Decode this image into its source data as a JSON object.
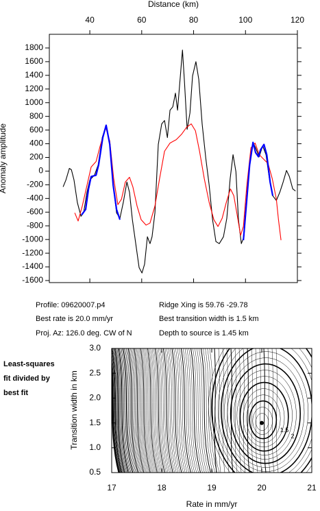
{
  "chart_data": [
    {
      "type": "line",
      "x_label": "Distance (km)",
      "y_label": "Anomaly amplitude",
      "xlim": [
        24.4,
        120
      ],
      "xticks": [
        40,
        60,
        80,
        100,
        120
      ],
      "ylim": [
        -1630,
        2000
      ],
      "yticks": [
        -1600,
        -1400,
        -1200,
        -1000,
        -800,
        -600,
        -400,
        -200,
        0,
        200,
        400,
        600,
        800,
        1000,
        1200,
        1400,
        1600,
        1800
      ],
      "series": [
        {
          "color": "#000000",
          "x": [
            29.7,
            30.8,
            32.1,
            32.9,
            33.9,
            35.2,
            36.6,
            37.6,
            38.9,
            40,
            41.8,
            43.2,
            44.8,
            46.3,
            47.7,
            49,
            50.3,
            51.6,
            52.9,
            54.3,
            55.3,
            56.4,
            57.7,
            59,
            60.1,
            61.1,
            62.2,
            63.2,
            64,
            65.1,
            66.4,
            67.7,
            68.8,
            69.9,
            70.9,
            72,
            73,
            73.8,
            74.9,
            75.7,
            76.5,
            77.5,
            78.6,
            79.6,
            80.9,
            82,
            83.3,
            84.7,
            86,
            87.3,
            88.6,
            89.9,
            91.5,
            92.8,
            94.1,
            95.2,
            96.3,
            97.3,
            98.4,
            99.4,
            100.5,
            101.6,
            102.9,
            103.9,
            105.3,
            106.6,
            107.9,
            109.2,
            110.5,
            111.9,
            113.2,
            114.5,
            115.8,
            116.9,
            118.2,
            119.3
          ],
          "values": [
            -230,
            -130,
            40,
            20,
            -130,
            -460,
            -660,
            -610,
            -310,
            -130,
            -60,
            90,
            490,
            670,
            390,
            -210,
            -610,
            -690,
            -460,
            -160,
            -310,
            -710,
            -1060,
            -1410,
            -1490,
            -1360,
            -960,
            -1060,
            -960,
            -610,
            390,
            690,
            740,
            490,
            890,
            940,
            1140,
            890,
            1390,
            1770,
            1290,
            610,
            850,
            1390,
            1600,
            1340,
            690,
            190,
            -210,
            -710,
            -1030,
            -1060,
            -960,
            -690,
            -110,
            240,
            -10,
            -710,
            -1060,
            -960,
            -410,
            90,
            420,
            340,
            210,
            370,
            240,
            -110,
            -360,
            -430,
            -310,
            -160,
            10,
            -80,
            -260,
            -290
          ]
        },
        {
          "color": "#ff0000",
          "x": [
            34.2,
            35.5,
            37.1,
            38.9,
            40.5,
            42.4,
            44,
            46.1,
            47.7,
            49.2,
            50.8,
            52.2,
            53.7,
            55.3,
            56.6,
            58.2,
            59.8,
            61.7,
            63.2,
            65.1,
            66.9,
            68.8,
            70.9,
            73.3,
            75.4,
            77.3,
            79.1,
            80.7,
            82.3,
            84.1,
            86,
            87.8,
            89.4,
            91,
            92.6,
            94.2,
            95.5,
            97.1,
            98.1,
            99.2,
            100.5,
            102.1,
            103.7,
            105.3,
            107.1,
            108.7,
            110.3,
            111.9,
            112.7,
            113.7
          ],
          "values": [
            -610,
            -730,
            -510,
            -210,
            60,
            140,
            370,
            640,
            440,
            -110,
            -490,
            -410,
            -160,
            -90,
            -230,
            -510,
            -710,
            -790,
            -760,
            -510,
            -110,
            290,
            410,
            460,
            540,
            640,
            690,
            590,
            290,
            -110,
            -460,
            -710,
            -810,
            -690,
            -460,
            -260,
            -360,
            -710,
            -940,
            -810,
            -210,
            340,
            410,
            240,
            170,
            110,
            -110,
            -410,
            -710,
            -1010
          ]
        },
        {
          "color": "#0000ff",
          "x": [
            36.8,
            38.4,
            39.5,
            40.5,
            42.4,
            43.4,
            45,
            46.3,
            47.7,
            49,
            50.3,
            51.6,
            75,
            99.2,
            100.5,
            101.6,
            102.9,
            103.9,
            105,
            105.8,
            107.1,
            108.2,
            109.5,
            110.5
          ],
          "values": [
            -640,
            -560,
            -260,
            -80,
            -60,
            90,
            490,
            670,
            390,
            -210,
            -560,
            -710,
            null,
            -1010,
            -410,
            90,
            420,
            270,
            210,
            310,
            390,
            240,
            -160,
            -360
          ]
        }
      ]
    },
    {
      "type": "contour",
      "x_label": "Rate in mm/yr",
      "y_label": "Transition width in km",
      "xlim": [
        17,
        21
      ],
      "xticks": [
        17,
        18,
        19,
        20,
        21
      ],
      "ylim": [
        0.5,
        3.0
      ],
      "yticks": [
        0.5,
        {
          "value": 1,
          "label": "1.0"
        },
        1.5,
        {
          "value": 2,
          "label": "2.0"
        },
        2.5,
        {
          "value": 3,
          "label": "3.0"
        }
      ],
      "best_fit": {
        "x": 20,
        "y": 1.5
      },
      "contour_labels": [
        1.5,
        2
      ]
    }
  ],
  "profile_info": {
    "profile": "Profile: 09620007.p4",
    "ridge": "Ridge Xing is 59.76 -29.78",
    "rate": "Best rate is 20.0 mm/yr",
    "width": "Best transition width is 1.5 km",
    "azimuth": "Proj. Az: 126.0 deg. CW of N",
    "depth": "Depth to source is   1.45 km"
  },
  "side_label": [
    "Least-squares",
    "fit divided by",
    "best fit"
  ]
}
